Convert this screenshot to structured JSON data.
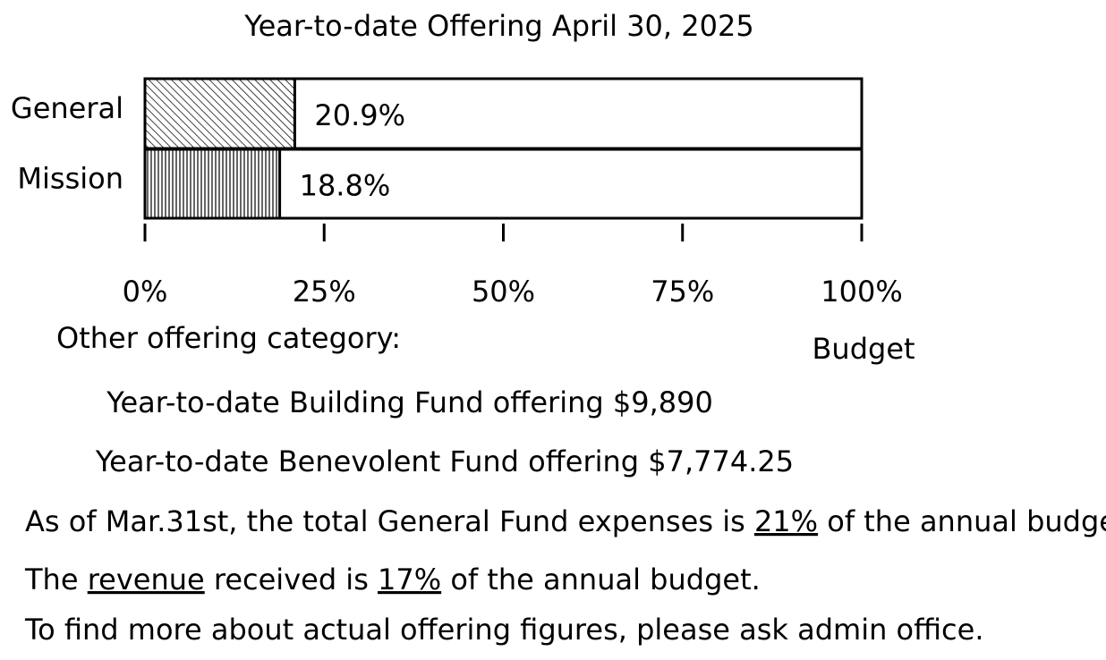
{
  "chart_data": {
    "type": "hbar",
    "title": "Year-to-date Offering April 30, 2025",
    "categories": [
      "General",
      "Mission"
    ],
    "values": [
      20.9,
      18.8
    ],
    "value_labels": [
      "20.9%",
      "18.8%"
    ],
    "hatch": [
      "diagonal",
      "vertical"
    ],
    "color": "#000000",
    "xlim": [
      0,
      100
    ],
    "xticks": [
      {
        "value": 0,
        "label": "0%"
      },
      {
        "value": 25,
        "label": "25%"
      },
      {
        "value": 50,
        "label": "50%"
      },
      {
        "value": 75,
        "label": "75%"
      },
      {
        "value": 100,
        "label": "100%"
      }
    ],
    "xlabel": "Budget"
  },
  "notes": {
    "heading": "Other offering category:",
    "funds": [
      "Year-to-date Building Fund offering $9,890",
      "Year-to-date Benevolent Fund offering $7,774.25"
    ],
    "lines": [
      [
        {
          "text": "As of Mar.31st, the total General Fund expenses is "
        },
        {
          "text": "21%",
          "underline": true
        },
        {
          "text": " of the annual budget."
        }
      ],
      [
        {
          "text": "The "
        },
        {
          "text": "revenue",
          "underline": true
        },
        {
          "text": " received is "
        },
        {
          "text": "17%",
          "underline": true
        },
        {
          "text": " of the annual budget."
        }
      ],
      [
        {
          "text": "To find more about actual offering figures, please ask admin office."
        }
      ]
    ]
  }
}
